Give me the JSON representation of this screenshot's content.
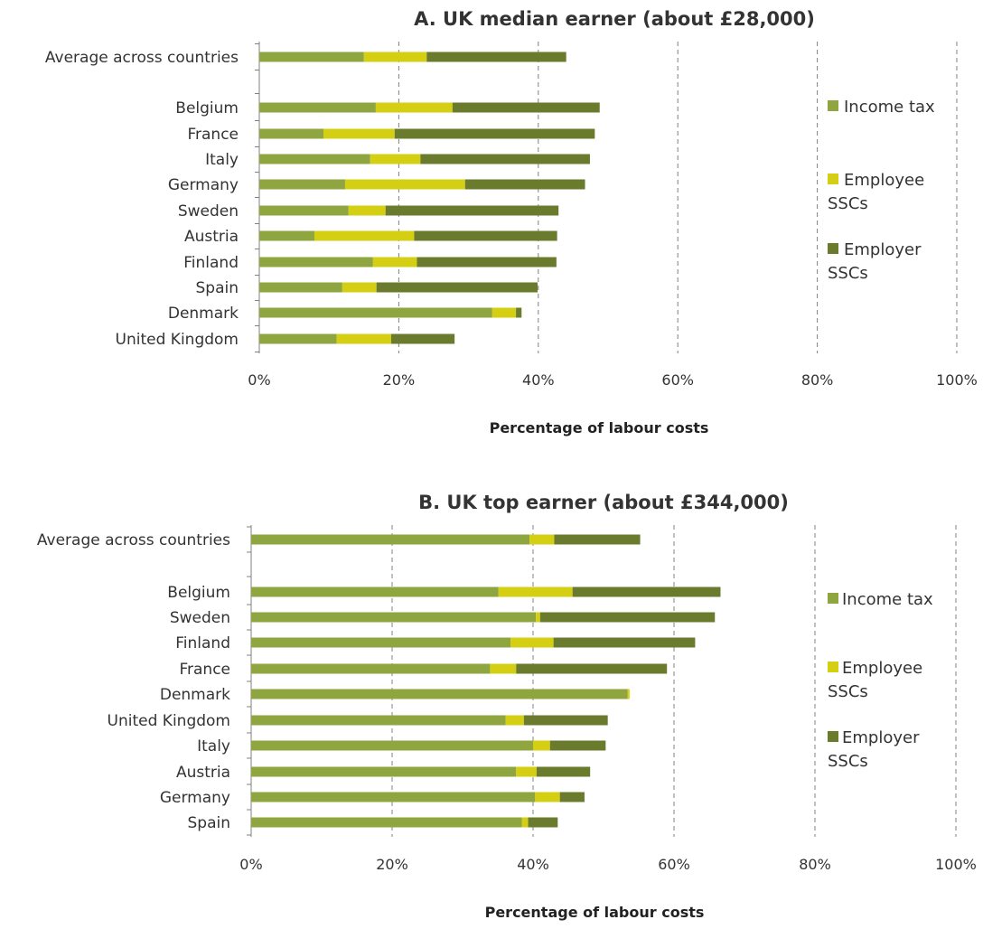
{
  "chart_data": [
    {
      "type": "bar",
      "orientation": "horizontal",
      "stacked": true,
      "title": "A. UK median earner (about £28,000)",
      "xlabel": "Percentage of labour costs",
      "xlim": [
        0,
        100
      ],
      "xticks": [
        "0%",
        "20%",
        "40%",
        "60%",
        "80%",
        "100%"
      ],
      "grid": true,
      "legend": "right",
      "categories": [
        "Average across countries",
        "Belgium",
        "France",
        "Italy",
        "Germany",
        "Sweden",
        "Austria",
        "Finland",
        "Spain",
        "Denmark",
        "United Kingdom"
      ],
      "series": [
        {
          "name": "Income tax",
          "color": "#8fa640",
          "values": [
            15.0,
            16.7,
            9.2,
            15.9,
            12.3,
            12.8,
            7.9,
            16.3,
            11.9,
            33.4,
            11.1
          ]
        },
        {
          "name": "Employee SSCs",
          "color": "#d4cf13",
          "values": [
            9.0,
            11.0,
            10.2,
            7.2,
            17.2,
            5.3,
            14.3,
            6.3,
            4.9,
            3.4,
            7.8
          ]
        },
        {
          "name": "Employer SSCs",
          "color": "#6a7b2e",
          "values": [
            20.0,
            21.1,
            28.7,
            24.3,
            17.2,
            24.8,
            20.5,
            20.0,
            23.1,
            0.8,
            9.1
          ]
        }
      ],
      "legend_labels": [
        [
          "Income tax"
        ],
        [
          "Employee",
          "SSCs"
        ],
        [
          "Employer",
          "SSCs"
        ]
      ]
    },
    {
      "type": "bar",
      "orientation": "horizontal",
      "stacked": true,
      "title": "B. UK top earner (about £344,000)",
      "xlabel": "Percentage of labour costs",
      "xlim": [
        0,
        100
      ],
      "xticks": [
        "0%",
        "20%",
        "40%",
        "60%",
        "80%",
        "100%"
      ],
      "grid": true,
      "legend": "right",
      "categories": [
        "Average across countries",
        "Belgium",
        "Sweden",
        "Finland",
        "France",
        "Denmark",
        "United Kingdom",
        "Italy",
        "Austria",
        "Germany",
        "Spain"
      ],
      "series": [
        {
          "name": "Income tax",
          "color": "#8fa640",
          "values": [
            39.5,
            35.1,
            40.4,
            36.8,
            33.9,
            53.4,
            36.1,
            40.0,
            37.6,
            40.3,
            38.4
          ]
        },
        {
          "name": "Employee SSCs",
          "color": "#d4cf13",
          "values": [
            3.5,
            10.5,
            0.6,
            6.1,
            3.7,
            0.3,
            2.6,
            2.4,
            2.9,
            3.5,
            0.9
          ]
        },
        {
          "name": "Employer SSCs",
          "color": "#6a7b2e",
          "values": [
            12.2,
            21.0,
            24.8,
            20.1,
            21.4,
            0.0,
            11.9,
            7.9,
            7.6,
            3.5,
            4.2
          ]
        }
      ],
      "legend_labels": [
        [
          "Income tax"
        ],
        [
          "Employee",
          "SSCs"
        ],
        [
          "Employer",
          "SSCs"
        ]
      ]
    }
  ]
}
